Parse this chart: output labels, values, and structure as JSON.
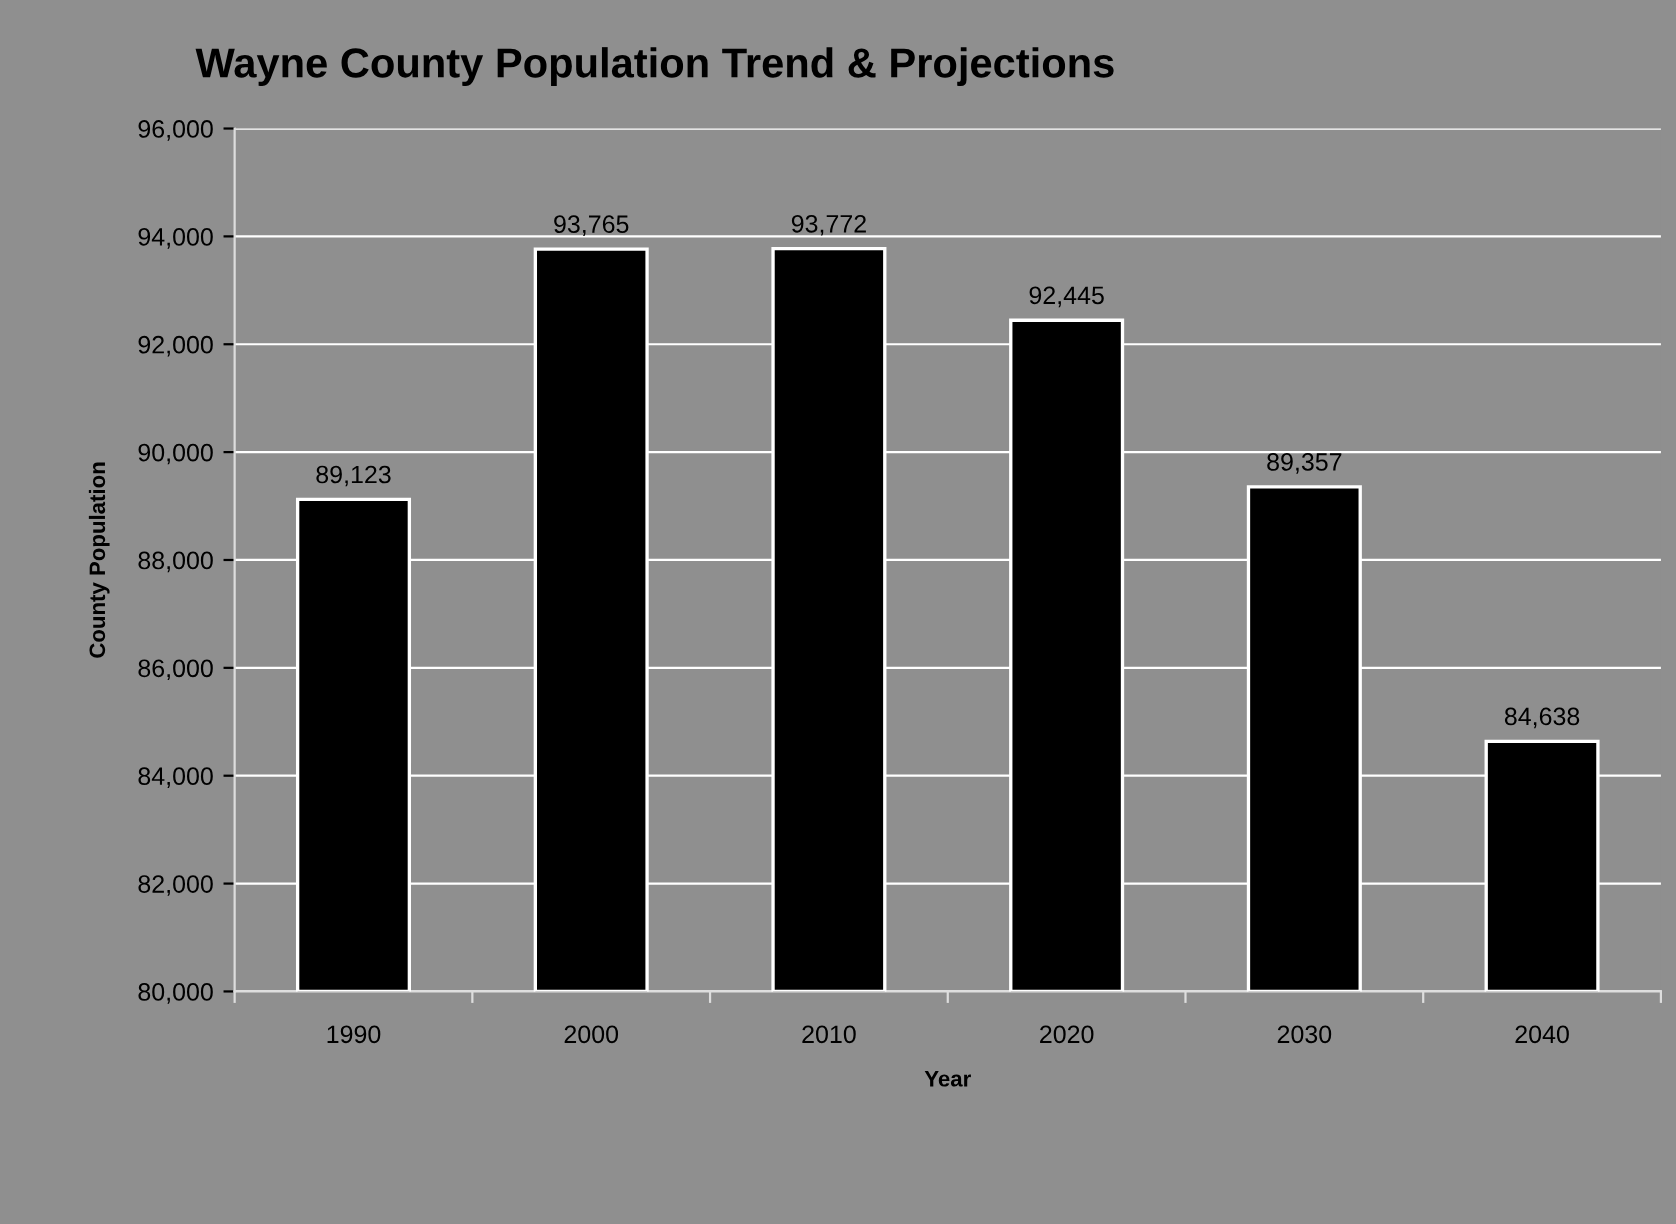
{
  "chart_data": {
    "type": "bar",
    "title": "Wayne County Population Trend & Projections",
    "xlabel": "Year",
    "ylabel": "County Population",
    "categories": [
      "1990",
      "2000",
      "2010",
      "2020",
      "2030",
      "2040"
    ],
    "values": [
      89123,
      93765,
      93772,
      92445,
      89357,
      84638
    ],
    "color": "#000000",
    "ylim": [
      80000,
      96000
    ],
    "yticks": [
      {
        "value": 80000,
        "label": "80,000"
      },
      {
        "value": 82000,
        "label": "82,000"
      },
      {
        "value": 84000,
        "label": "84,000"
      },
      {
        "value": 86000,
        "label": "86,000"
      },
      {
        "value": 88000,
        "label": "88,000"
      },
      {
        "value": 90000,
        "label": "90,000"
      },
      {
        "value": 92000,
        "label": "92,000"
      },
      {
        "value": 94000,
        "label": "94,000"
      },
      {
        "value": 96000,
        "label": "96,000"
      }
    ],
    "value_labels": [
      "89,123",
      "93,765",
      "93,772",
      "92,445",
      "89,357",
      "84,638"
    ],
    "grid": "y"
  }
}
